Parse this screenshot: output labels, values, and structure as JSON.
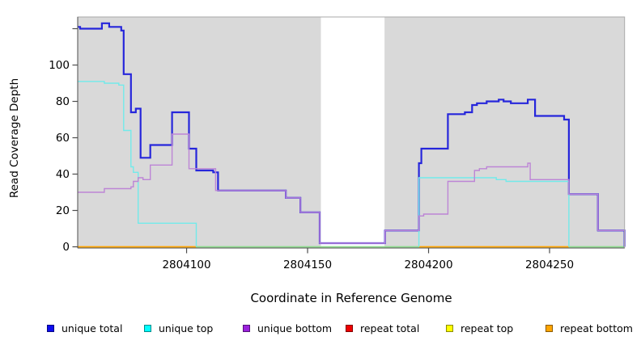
{
  "axes": {
    "ylabel": "Read Coverage Depth",
    "xlabel": "Coordinate in Reference Genome"
  },
  "chart_data": {
    "type": "line",
    "subtype": "step-coverage-plot",
    "title": "",
    "xlabel": "Coordinate in Reference Genome",
    "ylabel": "Read Coverage Depth",
    "xlim": [
      2804055,
      2804281
    ],
    "ylim": [
      0,
      126
    ],
    "grid": false,
    "legend_position": "bottom",
    "plot_bg": "#d9d9d9",
    "xticks": [
      {
        "value": 2804100,
        "label": "2804100"
      },
      {
        "value": 2804150,
        "label": "2804150"
      },
      {
        "value": 2804200,
        "label": "2804200"
      },
      {
        "value": 2804250,
        "label": "2804250"
      }
    ],
    "yticks": [
      {
        "value": 0,
        "label": "0"
      },
      {
        "value": 20,
        "label": "20"
      },
      {
        "value": 40,
        "label": "40"
      },
      {
        "value": 60,
        "label": "60"
      },
      {
        "value": 80,
        "label": "80"
      },
      {
        "value": 100,
        "label": "100"
      },
      {
        "value": 120,
        "label": ""
      }
    ],
    "gap": {
      "from": 2804155.5,
      "to": 2804181.8,
      "color": "#ffffff",
      "note": "white no-data band over plot background"
    },
    "zero_line_segments": [
      {
        "from": 2804055,
        "to": 2804104,
        "color": "#ffa500"
      },
      {
        "from": 2804104,
        "to": 2804196,
        "color": "#8fdc8f"
      },
      {
        "from": 2804196,
        "to": 2804258,
        "color": "#ffa500"
      },
      {
        "from": 2804258,
        "to": 2804281,
        "color": "#8fdc8f"
      }
    ],
    "series": [
      {
        "name": "unique total",
        "color": "#2626db",
        "legend_color": "#0d0dee",
        "width": 2.2,
        "segments": [
          [
            [
              2804055,
              121
            ],
            [
              2804056,
              120
            ],
            [
              2804065,
              123
            ],
            [
              2804068,
              121
            ],
            [
              2804073,
              119
            ],
            [
              2804074,
              95
            ],
            [
              2804077,
              74
            ],
            [
              2804079,
              76
            ],
            [
              2804081,
              49
            ],
            [
              2804085,
              56
            ],
            [
              2804094,
              74
            ],
            [
              2804101,
              54
            ],
            [
              2804104,
              42
            ],
            [
              2804111,
              41
            ],
            [
              2804113,
              31
            ],
            [
              2804141,
              27
            ],
            [
              2804147,
              19
            ],
            [
              2804155,
              2
            ],
            [
              2804182,
              9
            ],
            [
              2804196,
              46
            ],
            [
              2804197,
              54
            ],
            [
              2804208,
              73
            ],
            [
              2804215,
              74
            ],
            [
              2804218,
              78
            ],
            [
              2804220,
              79
            ],
            [
              2804224,
              80
            ],
            [
              2804229,
              81
            ],
            [
              2804231,
              80
            ],
            [
              2804234,
              79
            ],
            [
              2804241,
              81
            ],
            [
              2804244,
              72
            ],
            [
              2804256,
              70
            ],
            [
              2804258,
              29
            ],
            [
              2804270,
              9
            ],
            [
              2804281,
              0
            ]
          ]
        ]
      },
      {
        "name": "unique top",
        "color": "#72eaea",
        "legend_color": "#00ffff",
        "width": 1.4,
        "segments": [
          [
            [
              2804055,
              91
            ],
            [
              2804066,
              90
            ],
            [
              2804072,
              89
            ],
            [
              2804074,
              64
            ],
            [
              2804077,
              44
            ],
            [
              2804078,
              41
            ],
            [
              2804080,
              13
            ],
            [
              2804104,
              0
            ]
          ],
          [
            [
              2804196,
              0
            ],
            [
              2804196,
              38
            ],
            [
              2804228,
              37
            ],
            [
              2804232,
              36
            ],
            [
              2804258,
              0
            ]
          ]
        ]
      },
      {
        "name": "unique bottom",
        "color": "#bd85d6",
        "legend_color": "#9b21dd",
        "width": 1.4,
        "segments": [
          [
            [
              2804055,
              30
            ],
            [
              2804066,
              32
            ],
            [
              2804077,
              33
            ],
            [
              2804078,
              36
            ],
            [
              2804080,
              38
            ],
            [
              2804082,
              37
            ],
            [
              2804085,
              45
            ],
            [
              2804094,
              62
            ],
            [
              2804101,
              43
            ],
            [
              2804112,
              31
            ],
            [
              2804141,
              27
            ],
            [
              2804147,
              19
            ],
            [
              2804155,
              2
            ],
            [
              2804182,
              9
            ],
            [
              2804196,
              17
            ],
            [
              2804198,
              18
            ],
            [
              2804208,
              36
            ],
            [
              2804219,
              42
            ],
            [
              2804221,
              43
            ],
            [
              2804224,
              44
            ],
            [
              2804241,
              46
            ],
            [
              2804242,
              37
            ],
            [
              2804258,
              29
            ],
            [
              2804270,
              9
            ],
            [
              2804281,
              0
            ]
          ]
        ]
      },
      {
        "name": "repeat total",
        "color": "#ee0000",
        "legend_color": "#ee0000",
        "width": 1.4,
        "constant_value": 0,
        "segments": []
      },
      {
        "name": "repeat top",
        "color": "#ffff00",
        "legend_color": "#ffff00",
        "width": 1.4,
        "constant_value": 0,
        "segments": []
      },
      {
        "name": "repeat bottom",
        "color": "#ffa500",
        "legend_color": "#ffa500",
        "width": 1.8,
        "constant_value": 0,
        "segments": []
      }
    ]
  }
}
